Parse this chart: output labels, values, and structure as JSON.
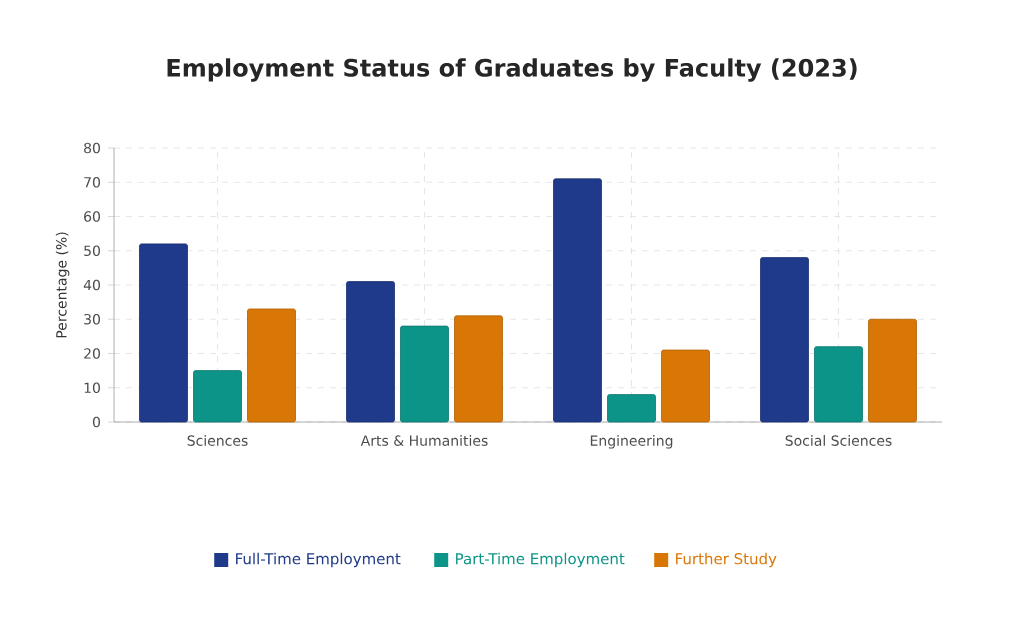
{
  "chart_data": {
    "type": "bar",
    "title": "Employment Status of Graduates by Faculty (2023)",
    "ylabel": "Percentage (%)",
    "categories": [
      "Sciences",
      "Arts & Humanities",
      "Engineering",
      "Social Sciences"
    ],
    "series": [
      {
        "name": "Full-Time Employment",
        "color": "#1f3a8a",
        "values": [
          52,
          41,
          71,
          48
        ]
      },
      {
        "name": "Part-Time Employment",
        "color": "#0d9488",
        "values": [
          15,
          28,
          8,
          22
        ]
      },
      {
        "name": "Further Study",
        "color": "#d97706",
        "values": [
          33,
          31,
          21,
          30
        ]
      }
    ],
    "ylim": [
      0,
      80
    ],
    "yticks": [
      0,
      10,
      20,
      30,
      40,
      50,
      60,
      70,
      80
    ],
    "grid": true,
    "legend": "bottom"
  }
}
